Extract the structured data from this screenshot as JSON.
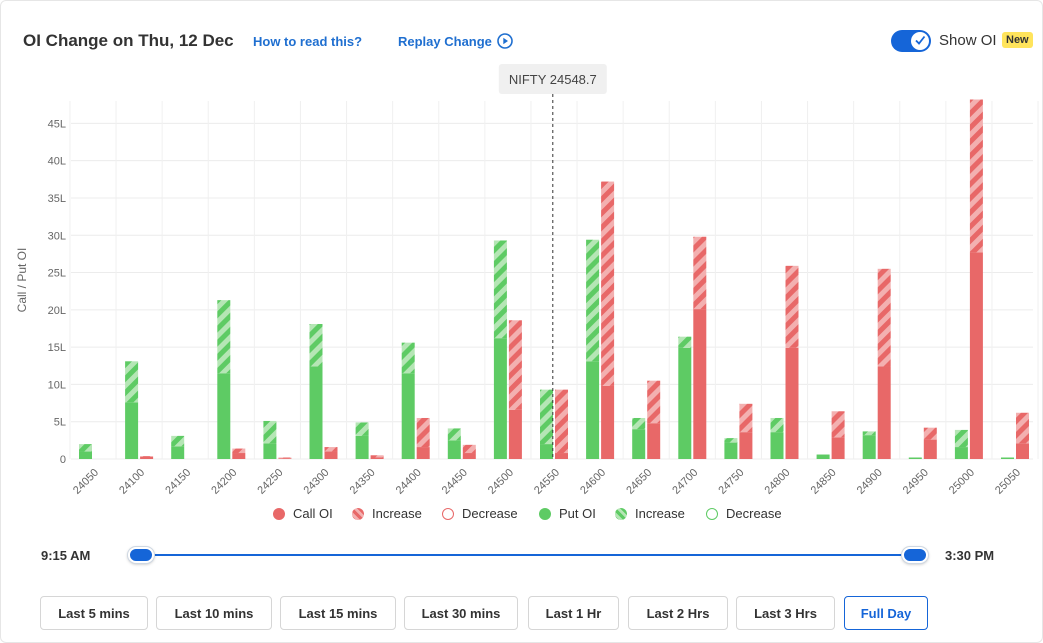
{
  "header": {
    "title": "OI Change on Thu, 12 Dec",
    "how_to_read": "How to read this?",
    "replay_change": "Replay Change",
    "show_oi_label": "Show OI",
    "new_badge": "New"
  },
  "colors": {
    "call": "#e86868",
    "call_light": "#f3b0b0",
    "put": "#5ecb64",
    "put_light": "#b5e6b5",
    "accent": "#1565d8"
  },
  "spot_label": "NIFTY 24548.7",
  "chart_data": {
    "type": "bar",
    "ylabel": "Call / Put OI",
    "y_ticks": [
      "0",
      "5L",
      "10L",
      "15L",
      "20L",
      "25L",
      "30L",
      "35L",
      "40L",
      "45L"
    ],
    "ylim": [
      0,
      48
    ],
    "spot": 24548.7,
    "categories": [
      "24050",
      "24100",
      "24150",
      "24200",
      "24250",
      "24300",
      "24350",
      "24400",
      "24450",
      "24500",
      "24550",
      "24600",
      "24650",
      "24700",
      "24750",
      "24800",
      "24850",
      "24900",
      "24950",
      "25000",
      "25050"
    ],
    "series": [
      {
        "name": "Put OI",
        "values": [
          1.0,
          7.6,
          1.7,
          11.5,
          2.1,
          12.4,
          3.1,
          11.5,
          2.5,
          16.2,
          2.0,
          13.1,
          4.0,
          14.9,
          2.2,
          3.6,
          0.6,
          3.2,
          0.2,
          1.6,
          0.2
        ]
      },
      {
        "name": "Put Increase",
        "values": [
          1.0,
          5.5,
          1.4,
          9.8,
          3.0,
          5.7,
          1.8,
          4.1,
          1.6,
          13.1,
          7.3,
          16.3,
          1.5,
          1.5,
          0.6,
          1.9,
          0.0,
          0.5,
          0.0,
          2.3,
          0.0
        ]
      },
      {
        "name": "Call OI",
        "values": [
          0.0,
          0.3,
          0.0,
          0.8,
          0.1,
          1.0,
          0.2,
          1.6,
          0.8,
          6.6,
          0.8,
          9.8,
          4.8,
          20.1,
          3.6,
          14.9,
          2.9,
          12.4,
          2.6,
          27.7,
          2.1
        ]
      },
      {
        "name": "Call Increase",
        "values": [
          0.0,
          0.1,
          0.0,
          0.6,
          0.1,
          0.6,
          0.3,
          3.9,
          1.1,
          12.0,
          8.5,
          27.4,
          5.7,
          9.7,
          3.8,
          11.0,
          3.5,
          13.1,
          1.6,
          20.5,
          4.1
        ]
      }
    ],
    "legend": [
      {
        "label": "Call OI",
        "kind": "call-solid"
      },
      {
        "label": "Increase",
        "kind": "call-hatch"
      },
      {
        "label": "Decrease",
        "kind": "call-outline"
      },
      {
        "label": "Put OI",
        "kind": "put-solid"
      },
      {
        "label": "Increase",
        "kind": "put-hatch"
      },
      {
        "label": "Decrease",
        "kind": "put-outline"
      }
    ]
  },
  "timeline": {
    "start": "9:15 AM",
    "end": "3:30 PM"
  },
  "range_buttons": [
    {
      "label": "Last 5 mins",
      "active": false
    },
    {
      "label": "Last 10 mins",
      "active": false
    },
    {
      "label": "Last 15 mins",
      "active": false
    },
    {
      "label": "Last 30 mins",
      "active": false
    },
    {
      "label": "Last 1 Hr",
      "active": false
    },
    {
      "label": "Last 2 Hrs",
      "active": false
    },
    {
      "label": "Last 3 Hrs",
      "active": false
    },
    {
      "label": "Full Day",
      "active": true
    }
  ]
}
